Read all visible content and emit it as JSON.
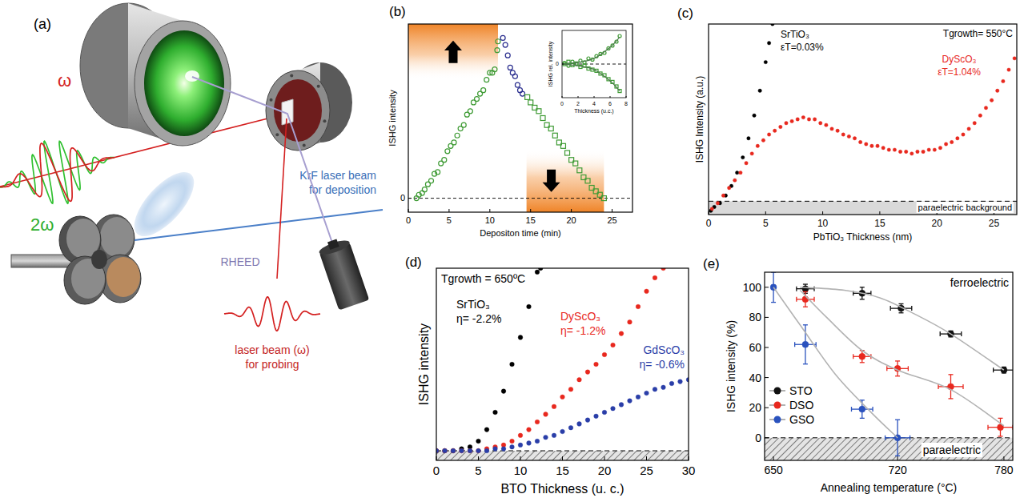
{
  "diagram": {
    "panel_label": "(a)",
    "omega": "ω",
    "second_harmonic": "2ω",
    "deposition_beam": [
      "KrF laser beam",
      "for deposition"
    ],
    "rheed": "RHEED",
    "probe_beam": [
      "laser beam (ω)",
      "for probing"
    ]
  },
  "chart_data": [
    {
      "type": "scatter",
      "panel_label": "(b)",
      "x_label": "Depositon time (min)",
      "y_label": "ISHG intensity",
      "xlim": [
        0,
        27.5
      ],
      "ylim": [
        -0.08,
        1
      ],
      "xticks": [
        0,
        5,
        10,
        15,
        20,
        25
      ],
      "yticks": [
        0
      ],
      "grid": true,
      "shaded_ranges": [
        {
          "x": [
            0,
            11
          ],
          "y": [
            0.68,
            1
          ]
        },
        {
          "x": [
            14.5,
            24
          ],
          "y": [
            -0.08,
            0.28
          ]
        }
      ],
      "series": [
        {
          "color": "#3f9b35",
          "marker": "open-circle",
          "x": [
            1.0,
            1.3,
            1.7,
            2.0,
            2.4,
            2.8,
            3.2,
            3.6,
            4.0,
            4.4,
            4.8,
            5.2,
            5.6,
            6.0,
            6.4,
            6.8,
            7.2,
            7.6,
            8.0,
            8.4,
            8.8,
            9.2,
            9.6,
            10.0,
            10.3,
            10.6,
            10.9,
            11.0
          ],
          "values": [
            0.0,
            0.02,
            0.03,
            0.05,
            0.08,
            0.1,
            0.14,
            0.15,
            0.2,
            0.22,
            0.27,
            0.3,
            0.32,
            0.36,
            0.4,
            0.42,
            0.48,
            0.5,
            0.55,
            0.57,
            0.6,
            0.62,
            0.68,
            0.72,
            0.72,
            0.74,
            0.85,
            0.9
          ]
        },
        {
          "color": "#2b2f8f",
          "marker": "open-circle",
          "x": [
            11.6,
            11.9,
            12.2,
            12.5,
            12.8,
            13.1,
            13.4,
            13.7,
            14.0
          ],
          "values": [
            0.92,
            0.88,
            0.82,
            0.75,
            0.72,
            0.7,
            0.65,
            0.62,
            0.6
          ]
        },
        {
          "color": "#3f9b35",
          "marker": "open-square",
          "x": [
            14.6,
            15.0,
            15.5,
            16.0,
            16.5,
            17.0,
            17.5,
            18.0,
            18.5,
            19.0,
            19.5,
            20.0,
            20.5,
            21.0,
            21.5,
            22.0,
            22.5,
            23.0,
            23.5,
            24.0
          ],
          "values": [
            0.58,
            0.55,
            0.52,
            0.5,
            0.46,
            0.42,
            0.4,
            0.36,
            0.32,
            0.3,
            0.26,
            0.22,
            0.2,
            0.16,
            0.12,
            0.1,
            0.06,
            0.04,
            0.02,
            0.0
          ]
        }
      ]
    },
    {
      "type": "scatter",
      "x_label": "Thickness (u.c.)",
      "y_label": "ISHG rel. intensity",
      "xlim": [
        0,
        8
      ],
      "ylim": [
        -0.6,
        0.6
      ],
      "xticks": [
        0,
        2,
        4,
        6,
        8
      ],
      "yticks": [
        0
      ],
      "grid": true,
      "series": [
        {
          "color": "#3f9b35",
          "marker": "open-circle",
          "x": [
            0.3,
            0.8,
            1.3,
            1.8,
            2.3,
            2.8,
            3.3,
            3.8,
            4.3,
            4.8,
            5.3,
            5.8,
            6.3,
            6.8,
            7.2
          ],
          "values": [
            0.02,
            -0.03,
            0.04,
            0.0,
            0.06,
            0.03,
            0.1,
            0.08,
            0.14,
            0.18,
            0.2,
            0.28,
            0.33,
            0.4,
            0.5
          ]
        },
        {
          "color": "#3f9b35",
          "marker": "open-square",
          "x": [
            0.3,
            0.8,
            1.3,
            1.8,
            2.3,
            2.8,
            3.3,
            3.8,
            4.3,
            4.8,
            5.3,
            5.8,
            6.3,
            6.8,
            7.2
          ],
          "values": [
            0.0,
            0.04,
            -0.02,
            0.01,
            -0.05,
            -0.03,
            -0.08,
            -0.1,
            -0.12,
            -0.17,
            -0.2,
            -0.27,
            -0.32,
            -0.4,
            -0.48
          ]
        },
        {
          "type": "line",
          "color": "#4a7a4a",
          "line_style": "solid",
          "x": [
            0,
            2,
            4,
            6,
            7.2
          ],
          "values": [
            0,
            0.03,
            0.1,
            0.3,
            0.48
          ]
        },
        {
          "type": "line",
          "color": "#4a7a4a",
          "line_style": "solid",
          "x": [
            0,
            2,
            4,
            6,
            7.2
          ],
          "values": [
            0,
            -0.03,
            -0.1,
            -0.3,
            -0.48
          ]
        }
      ]
    },
    {
      "type": "scatter",
      "panel_label": "(c)",
      "x_label": "PbTiO₃ Thickness (nm)",
      "y_label": "ISHG Intensity (a.u.)",
      "xlim": [
        0,
        27
      ],
      "ylim": [
        0,
        1
      ],
      "xticks": [
        0,
        5,
        10,
        15,
        20,
        25
      ],
      "yticks": [],
      "tick_labels": "x",
      "background": 0.07,
      "background_label": "paraelectric background",
      "annotations": [
        {
          "text": "Tgrowth= 550°C",
          "color": "#000000"
        },
        {
          "text": "SrTiO₃",
          "color": "#000000"
        },
        {
          "text": "εT=0.03%",
          "color": "#000000"
        },
        {
          "text": "DyScO₃",
          "color": "#e8281e"
        },
        {
          "text": "εT=1.04%",
          "color": "#e8281e"
        }
      ],
      "series": [
        {
          "color": "#000000",
          "marker": "circle",
          "x": [
            0.2,
            0.5,
            1.0,
            1.5,
            2.0,
            2.5,
            3.0,
            3.5,
            4.0,
            4.5,
            5.0,
            5.3,
            5.6
          ],
          "values": [
            0.02,
            0.04,
            0.06,
            0.1,
            0.15,
            0.22,
            0.3,
            0.4,
            0.52,
            0.65,
            0.8,
            0.9,
            1.0
          ]
        },
        {
          "color": "#e8281e",
          "marker": "circle",
          "x": [
            0.3,
            0.8,
            1.3,
            1.8,
            2.3,
            2.8,
            3.3,
            3.8,
            4.3,
            4.8,
            5.3,
            5.8,
            6.3,
            6.8,
            7.3,
            7.8,
            8.3,
            8.8,
            9.3,
            9.8,
            10.3,
            10.8,
            11.3,
            11.8,
            12.3,
            12.8,
            13.3,
            13.8,
            14.3,
            14.8,
            15.3,
            15.8,
            16.3,
            16.8,
            17.3,
            17.8,
            18.3,
            18.8,
            19.3,
            19.8,
            20.3,
            20.8,
            21.3,
            21.8,
            22.3,
            22.8,
            23.3,
            23.8,
            24.3,
            24.8,
            25.3,
            25.8,
            26.3,
            26.8
          ],
          "values": [
            0.03,
            0.06,
            0.1,
            0.14,
            0.18,
            0.22,
            0.27,
            0.32,
            0.36,
            0.39,
            0.42,
            0.44,
            0.46,
            0.48,
            0.49,
            0.5,
            0.51,
            0.5,
            0.5,
            0.48,
            0.47,
            0.45,
            0.44,
            0.42,
            0.41,
            0.4,
            0.38,
            0.37,
            0.36,
            0.36,
            0.35,
            0.34,
            0.34,
            0.33,
            0.33,
            0.32,
            0.33,
            0.33,
            0.34,
            0.34,
            0.35,
            0.37,
            0.38,
            0.4,
            0.42,
            0.45,
            0.48,
            0.52,
            0.56,
            0.6,
            0.65,
            0.7,
            0.76,
            0.82
          ]
        }
      ]
    },
    {
      "type": "scatter",
      "panel_label": "(d)",
      "x_label": "BTO Thickness (u. c.)",
      "y_label": "ISHG intensity",
      "xlim": [
        0,
        30
      ],
      "ylim": [
        0,
        1
      ],
      "xticks": [
        0,
        5,
        10,
        15,
        20,
        25,
        30
      ],
      "yticks": [],
      "tick_labels": "x",
      "background": 0.05,
      "annotations": [
        {
          "text": "Tgrowth = 650ºC",
          "color": "#000000"
        },
        {
          "text": "SrTiO₃",
          "color": "#000000"
        },
        {
          "text": "η= -2.2%",
          "color": "#000000"
        },
        {
          "text": "DyScO₃",
          "color": "#e8281e"
        },
        {
          "text": "η= -1.2%",
          "color": "#e8281e"
        },
        {
          "text": "GdScO₃",
          "color": "#2a3ea8"
        },
        {
          "text": "η= -0.6%",
          "color": "#2a3ea8"
        }
      ],
      "series": [
        {
          "color": "#000000",
          "marker": "circle",
          "x": [
            0,
            1,
            2,
            3,
            4,
            5,
            6,
            7,
            8,
            9,
            10,
            11,
            12,
            12.4
          ],
          "values": [
            0.05,
            0.05,
            0.05,
            0.06,
            0.07,
            0.1,
            0.16,
            0.25,
            0.36,
            0.5,
            0.64,
            0.8,
            0.98,
            1.0
          ]
        },
        {
          "color": "#e8281e",
          "marker": "circle",
          "x": [
            0,
            1,
            2,
            3,
            4,
            5,
            6,
            7,
            8,
            9,
            10,
            11,
            12,
            13,
            14,
            15,
            16,
            17,
            18,
            19,
            20,
            21,
            22,
            23,
            24,
            25,
            26,
            27
          ],
          "values": [
            0.05,
            0.05,
            0.05,
            0.05,
            0.05,
            0.05,
            0.06,
            0.07,
            0.08,
            0.1,
            0.13,
            0.16,
            0.2,
            0.24,
            0.28,
            0.33,
            0.37,
            0.42,
            0.46,
            0.5,
            0.55,
            0.6,
            0.66,
            0.72,
            0.8,
            0.88,
            0.95,
            1.0
          ]
        },
        {
          "color": "#2a3ea8",
          "marker": "circle",
          "x": [
            0,
            1,
            2,
            3,
            4,
            5,
            6,
            7,
            8,
            9,
            10,
            11,
            12,
            13,
            14,
            15,
            16,
            17,
            18,
            19,
            20,
            21,
            22,
            23,
            24,
            25,
            26,
            27,
            28,
            29,
            30
          ],
          "values": [
            0.05,
            0.05,
            0.05,
            0.05,
            0.05,
            0.05,
            0.05,
            0.06,
            0.06,
            0.07,
            0.08,
            0.09,
            0.1,
            0.12,
            0.13,
            0.15,
            0.17,
            0.19,
            0.21,
            0.23,
            0.25,
            0.27,
            0.29,
            0.31,
            0.33,
            0.35,
            0.37,
            0.38,
            0.4,
            0.41,
            0.42
          ]
        }
      ]
    },
    {
      "type": "scatter",
      "panel_label": "(e)",
      "x_label": "Annealing temperature (°C)",
      "y_label": "ISHG intensity (%)",
      "xlim": [
        645,
        785
      ],
      "ylim": [
        -15,
        110
      ],
      "xticks": [
        650,
        720,
        780
      ],
      "yticks": [
        0,
        20,
        40,
        60,
        80,
        100
      ],
      "background": 0,
      "background_label": "paraelectric",
      "legend": "lower left",
      "annotations": [
        {
          "text": "ferroelectric",
          "color": "#000000"
        }
      ],
      "series": [
        {
          "name": "STO",
          "color": "#111111",
          "marker": "circle",
          "x": [
            668,
            700,
            722,
            750,
            780
          ],
          "values": [
            99,
            96,
            86,
            69,
            45
          ],
          "errors": [
            3,
            4,
            3,
            2,
            2
          ],
          "x_errors": [
            5,
            5,
            6,
            6,
            6
          ]
        },
        {
          "name": "DSO",
          "color": "#e8281e",
          "marker": "circle",
          "x": [
            668,
            700,
            720,
            750,
            778
          ],
          "values": [
            92,
            54,
            46,
            34,
            7
          ],
          "errors": [
            5,
            4,
            5,
            8,
            6
          ],
          "x_errors": [
            5,
            5,
            6,
            7,
            7
          ]
        },
        {
          "name": "GSO",
          "color": "#2a52be",
          "marker": "circle",
          "x": [
            650,
            668,
            700,
            720
          ],
          "values": [
            100,
            62,
            19,
            0
          ],
          "errors": [
            10,
            13,
            6,
            12
          ],
          "x_errors": [
            1,
            6,
            6,
            7
          ]
        },
        {
          "type": "line",
          "color": "#b3b3b3",
          "line_style": "solid",
          "x": [
            665,
            690,
            710,
            730,
            750,
            780
          ],
          "values": [
            100,
            98,
            93,
            82,
            69,
            45
          ]
        },
        {
          "type": "line",
          "color": "#b3b3b3",
          "line_style": "solid",
          "x": [
            665,
            680,
            700,
            720,
            750,
            780
          ],
          "values": [
            98,
            80,
            58,
            45,
            32,
            8
          ]
        },
        {
          "type": "line",
          "color": "#b3b3b3",
          "line_style": "solid",
          "x": [
            650,
            665,
            685,
            705,
            720
          ],
          "values": [
            100,
            75,
            42,
            17,
            0
          ]
        }
      ]
    }
  ]
}
